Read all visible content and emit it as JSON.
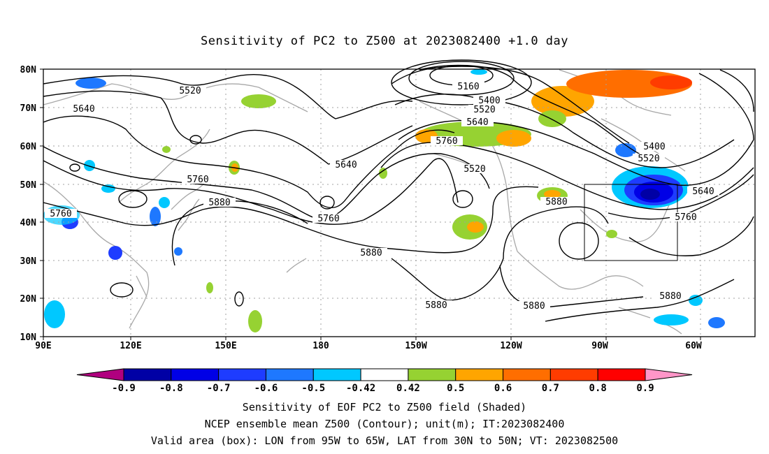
{
  "title": "Sensitivity of PC2 to Z500 at 2023082400 +1.0 day",
  "map": {
    "lon_ticks": [
      "90E",
      "120E",
      "150E",
      "180",
      "150W",
      "120W",
      "90W",
      "60W"
    ],
    "lat_ticks": [
      "80N",
      "70N",
      "60N",
      "50N",
      "40N",
      "30N",
      "20N",
      "10N"
    ],
    "contour_labels": [
      "5520",
      "5640",
      "5160",
      "5400",
      "5520",
      "5640",
      "5760",
      "5400",
      "5520",
      "5640",
      "5520",
      "5760",
      "5880",
      "5640",
      "5760",
      "5760",
      "5880",
      "5760",
      "5880",
      "5880",
      "5880",
      "5880"
    ],
    "box": {
      "lon_from": "95W",
      "lon_to": "65W",
      "lat_from": "30N",
      "lat_to": "50N"
    }
  },
  "colorbar": {
    "labels": [
      "-0.9",
      "-0.8",
      "-0.7",
      "-0.6",
      "-0.5",
      "-0.42",
      "0.42",
      "0.5",
      "0.6",
      "0.7",
      "0.8",
      "0.9"
    ],
    "colors": [
      "#b0007f",
      "#0000a5",
      "#0000e6",
      "#1e3cff",
      "#1e78ff",
      "#00c8ff",
      "#ffffff",
      "#96d232",
      "#ffa500",
      "#ff6e00",
      "#ff3c00",
      "#ff0000",
      "#ff96c8"
    ]
  },
  "footer": {
    "line1": "Sensitivity of EOF PC2 to Z500 field (Shaded)",
    "line2": "NCEP ensemble mean Z500 (Contour); unit(m); IT:2023082400",
    "line3": "Valid area (box): LON from 95W to 65W, LAT from 30N to 50N; VT: 2023082500"
  }
}
